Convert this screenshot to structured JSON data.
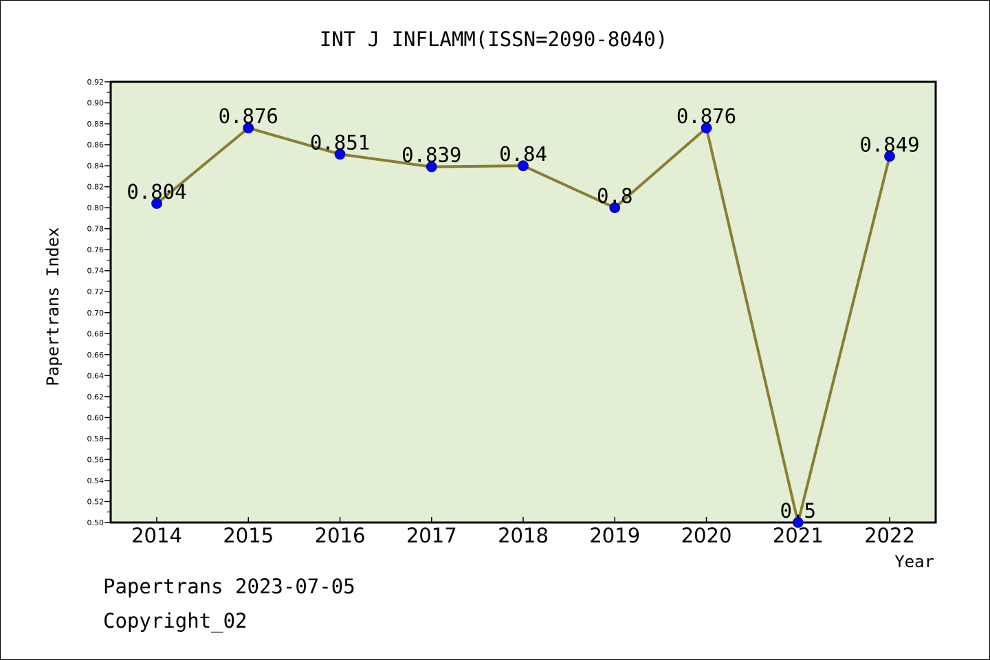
{
  "footer": {
    "line1": "Papertrans 2023-07-05",
    "line2": "Copyright_02"
  },
  "colors": {
    "plot_background": "#e2efd5",
    "line": "#8b7d33",
    "marker": "#0000ff",
    "frame": "#000000"
  },
  "chart_data": {
    "type": "line",
    "title": "INT J INFLAMM(ISSN=2090-8040)",
    "xlabel": "Year",
    "ylabel": "Papertrans Index",
    "categories": [
      "2014",
      "2015",
      "2016",
      "2017",
      "2018",
      "2019",
      "2020",
      "2021",
      "2022"
    ],
    "series": [
      {
        "values": [
          0.804,
          0.876,
          0.851,
          0.839,
          0.84,
          0.8,
          0.876,
          0.5,
          0.849
        ],
        "labels": [
          "0.804",
          "0.876",
          "0.851",
          "0.839",
          "0.84",
          "0.8",
          "0.876",
          "0.5",
          "0.849"
        ]
      }
    ],
    "ylim": [
      0.5,
      0.92
    ],
    "ytick_step": 0.02,
    "grid": false,
    "legend": "none"
  }
}
